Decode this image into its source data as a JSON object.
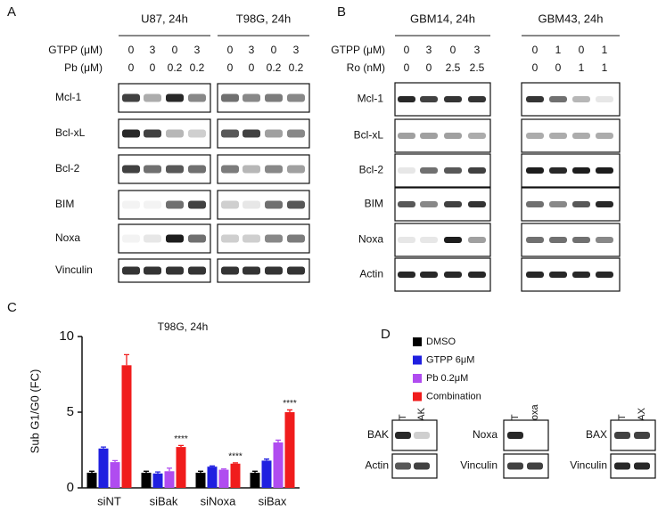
{
  "panel_a": {
    "label": "A",
    "groups": [
      "U87, 24h",
      "T98G, 24h"
    ],
    "conditions": [
      {
        "name": "GTPP (μM)",
        "values": [
          0,
          3,
          0,
          3,
          0,
          3,
          0,
          3
        ]
      },
      {
        "name": "Pb (μM)",
        "values": [
          0,
          0,
          0.2,
          0.2,
          0,
          0,
          0.2,
          0.2
        ]
      }
    ],
    "rows": [
      "Mcl-1",
      "Bcl-xL",
      "Bcl-2",
      "BIM",
      "Noxa",
      "Vinculin"
    ]
  },
  "panel_b": {
    "label": "B",
    "groups": [
      "GBM14, 24h",
      "GBM43, 24h"
    ],
    "conditions": [
      {
        "name": "GTPP (μM)",
        "values": [
          0,
          3,
          0,
          3,
          0,
          1,
          0,
          1
        ]
      },
      {
        "name": "Ro (nM)",
        "values": [
          0,
          0,
          2.5,
          2.5,
          0,
          0,
          1,
          1
        ]
      }
    ],
    "rows": [
      "Mcl-1",
      "Bcl-xL",
      "Bcl-2",
      "BIM",
      "Noxa",
      "Actin"
    ]
  },
  "chart_data": {
    "type": "bar",
    "panel_label": "C",
    "title": "T98G, 24h",
    "y_label": "Sub G1/G0 (FC)",
    "categories": [
      "siNT",
      "siBak",
      "siNoxa",
      "siBax"
    ],
    "series": [
      {
        "name": "DMSO",
        "color": "#000000",
        "values": [
          1.0,
          1.0,
          1.0,
          1.0
        ],
        "errors": [
          0.1,
          0.1,
          0.1,
          0.1
        ]
      },
      {
        "name": "GTPP 6μM",
        "color": "#1f1fe0",
        "values": [
          2.6,
          0.95,
          1.4,
          1.8
        ],
        "errors": [
          0.1,
          0.1,
          0.05,
          0.1
        ]
      },
      {
        "name": "Pb 0.2μM",
        "color": "#b04cf0",
        "values": [
          1.7,
          1.1,
          1.2,
          3.0
        ],
        "errors": [
          0.1,
          0.2,
          0.05,
          0.15
        ]
      },
      {
        "name": "Combination",
        "color": "#f01c1c",
        "values": [
          8.1,
          2.7,
          1.6,
          5.0
        ],
        "errors": [
          0.7,
          0.1,
          0.05,
          0.15
        ]
      }
    ],
    "annotations": [
      {
        "text": "****",
        "category": "siBak"
      },
      {
        "text": "****",
        "category": "siNoxa"
      },
      {
        "text": "****",
        "category": "siBax"
      }
    ],
    "ylim": [
      0,
      10
    ],
    "yticks": [
      0,
      5,
      10
    ],
    "legend": "right"
  },
  "panel_d": {
    "label": "D",
    "blots": [
      {
        "lanes": [
          "siNT",
          "siBAK"
        ],
        "rows": [
          "BAK",
          "Actin"
        ]
      },
      {
        "lanes": [
          "siNT",
          "siNoxa"
        ],
        "rows": [
          "Noxa",
          "Vinculin"
        ]
      },
      {
        "lanes": [
          "siNT",
          "siBAX"
        ],
        "rows": [
          "BAX",
          "Vinculin"
        ]
      }
    ]
  }
}
